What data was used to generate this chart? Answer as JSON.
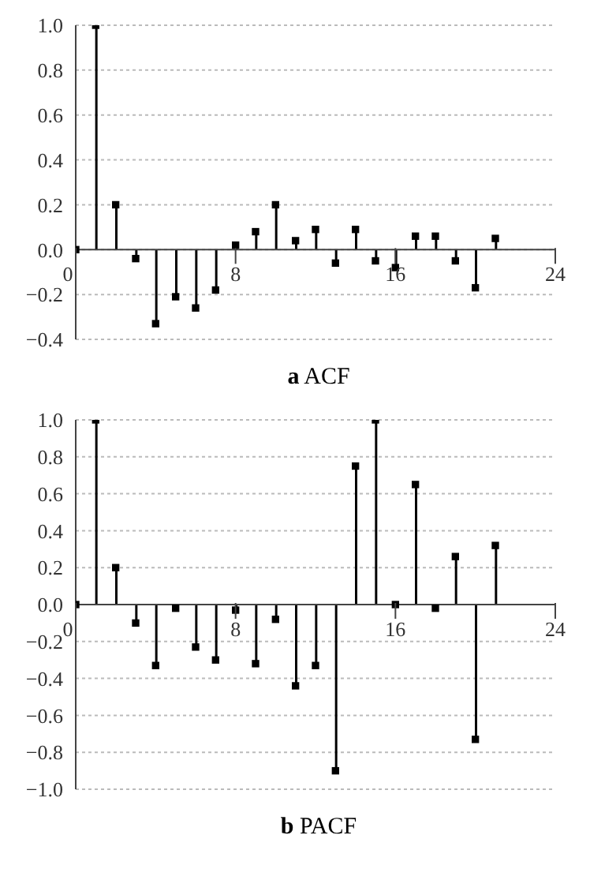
{
  "chart_data": [
    {
      "type": "lollipop",
      "xlabel": "a ACF",
      "x": [
        0,
        1,
        2,
        3,
        4,
        5,
        6,
        7,
        8,
        9,
        10,
        11,
        12,
        13,
        14,
        15,
        16,
        17,
        18,
        19,
        20,
        21
      ],
      "color": "#000000",
      "marker": "square",
      "grid": "y",
      "values": [
        0,
        1.0,
        0.2,
        -0.04,
        -0.33,
        -0.21,
        -0.26,
        -0.18,
        0.02,
        0.08,
        0.2,
        0.04,
        0.09,
        -0.06,
        0.09,
        -0.05,
        -0.08,
        0.06,
        0.06,
        -0.05,
        -0.17,
        0.05
      ],
      "xlim": [
        0,
        24
      ],
      "xticks": [
        0,
        8,
        16,
        24
      ],
      "ylim": [
        -0.4,
        1.0
      ],
      "yticks": [
        {
          "value": -0.4,
          "label": "−0.4"
        },
        {
          "value": -0.2,
          "label": "−0.2"
        },
        {
          "value": 0,
          "label": "0.0"
        },
        {
          "value": 0.2,
          "label": "0.2"
        },
        {
          "value": 0.4,
          "label": "0.4"
        },
        {
          "value": 0.6,
          "label": "0.6"
        },
        {
          "value": 0.8,
          "label": "0.8"
        },
        {
          "value": 1,
          "label": "1.0"
        }
      ]
    },
    {
      "type": "lollipop",
      "xlabel": "b PACF",
      "x": [
        0,
        1,
        2,
        3,
        4,
        5,
        6,
        7,
        8,
        9,
        10,
        11,
        12,
        13,
        14,
        15,
        16,
        17,
        18,
        19,
        20,
        21
      ],
      "color": "#000000",
      "marker": "square",
      "grid": "y",
      "values": [
        0,
        1.0,
        0.2,
        -0.1,
        -0.33,
        -0.02,
        -0.23,
        -0.3,
        -0.03,
        -0.32,
        -0.08,
        -0.44,
        -0.33,
        -0.9,
        0.75,
        1.0,
        0.0,
        0.65,
        -0.02,
        0.26,
        -0.73,
        0.32
      ],
      "xlim": [
        0,
        24
      ],
      "xticks": [
        0,
        8,
        16,
        24
      ],
      "ylim": [
        -1.0,
        1.0
      ],
      "yticks": [
        {
          "value": -1,
          "label": "−1.0"
        },
        {
          "value": -0.8,
          "label": "−0.8"
        },
        {
          "value": -0.6,
          "label": "−0.6"
        },
        {
          "value": -0.4,
          "label": "−0.4"
        },
        {
          "value": -0.2,
          "label": "−0.2"
        },
        {
          "value": 0,
          "label": "0.0"
        },
        {
          "value": 0.2,
          "label": "0.2"
        },
        {
          "value": 0.4,
          "label": "0.4"
        },
        {
          "value": 0.6,
          "label": "0.6"
        },
        {
          "value": 0.8,
          "label": "0.8"
        },
        {
          "value": 1,
          "label": "1.0"
        }
      ]
    }
  ]
}
